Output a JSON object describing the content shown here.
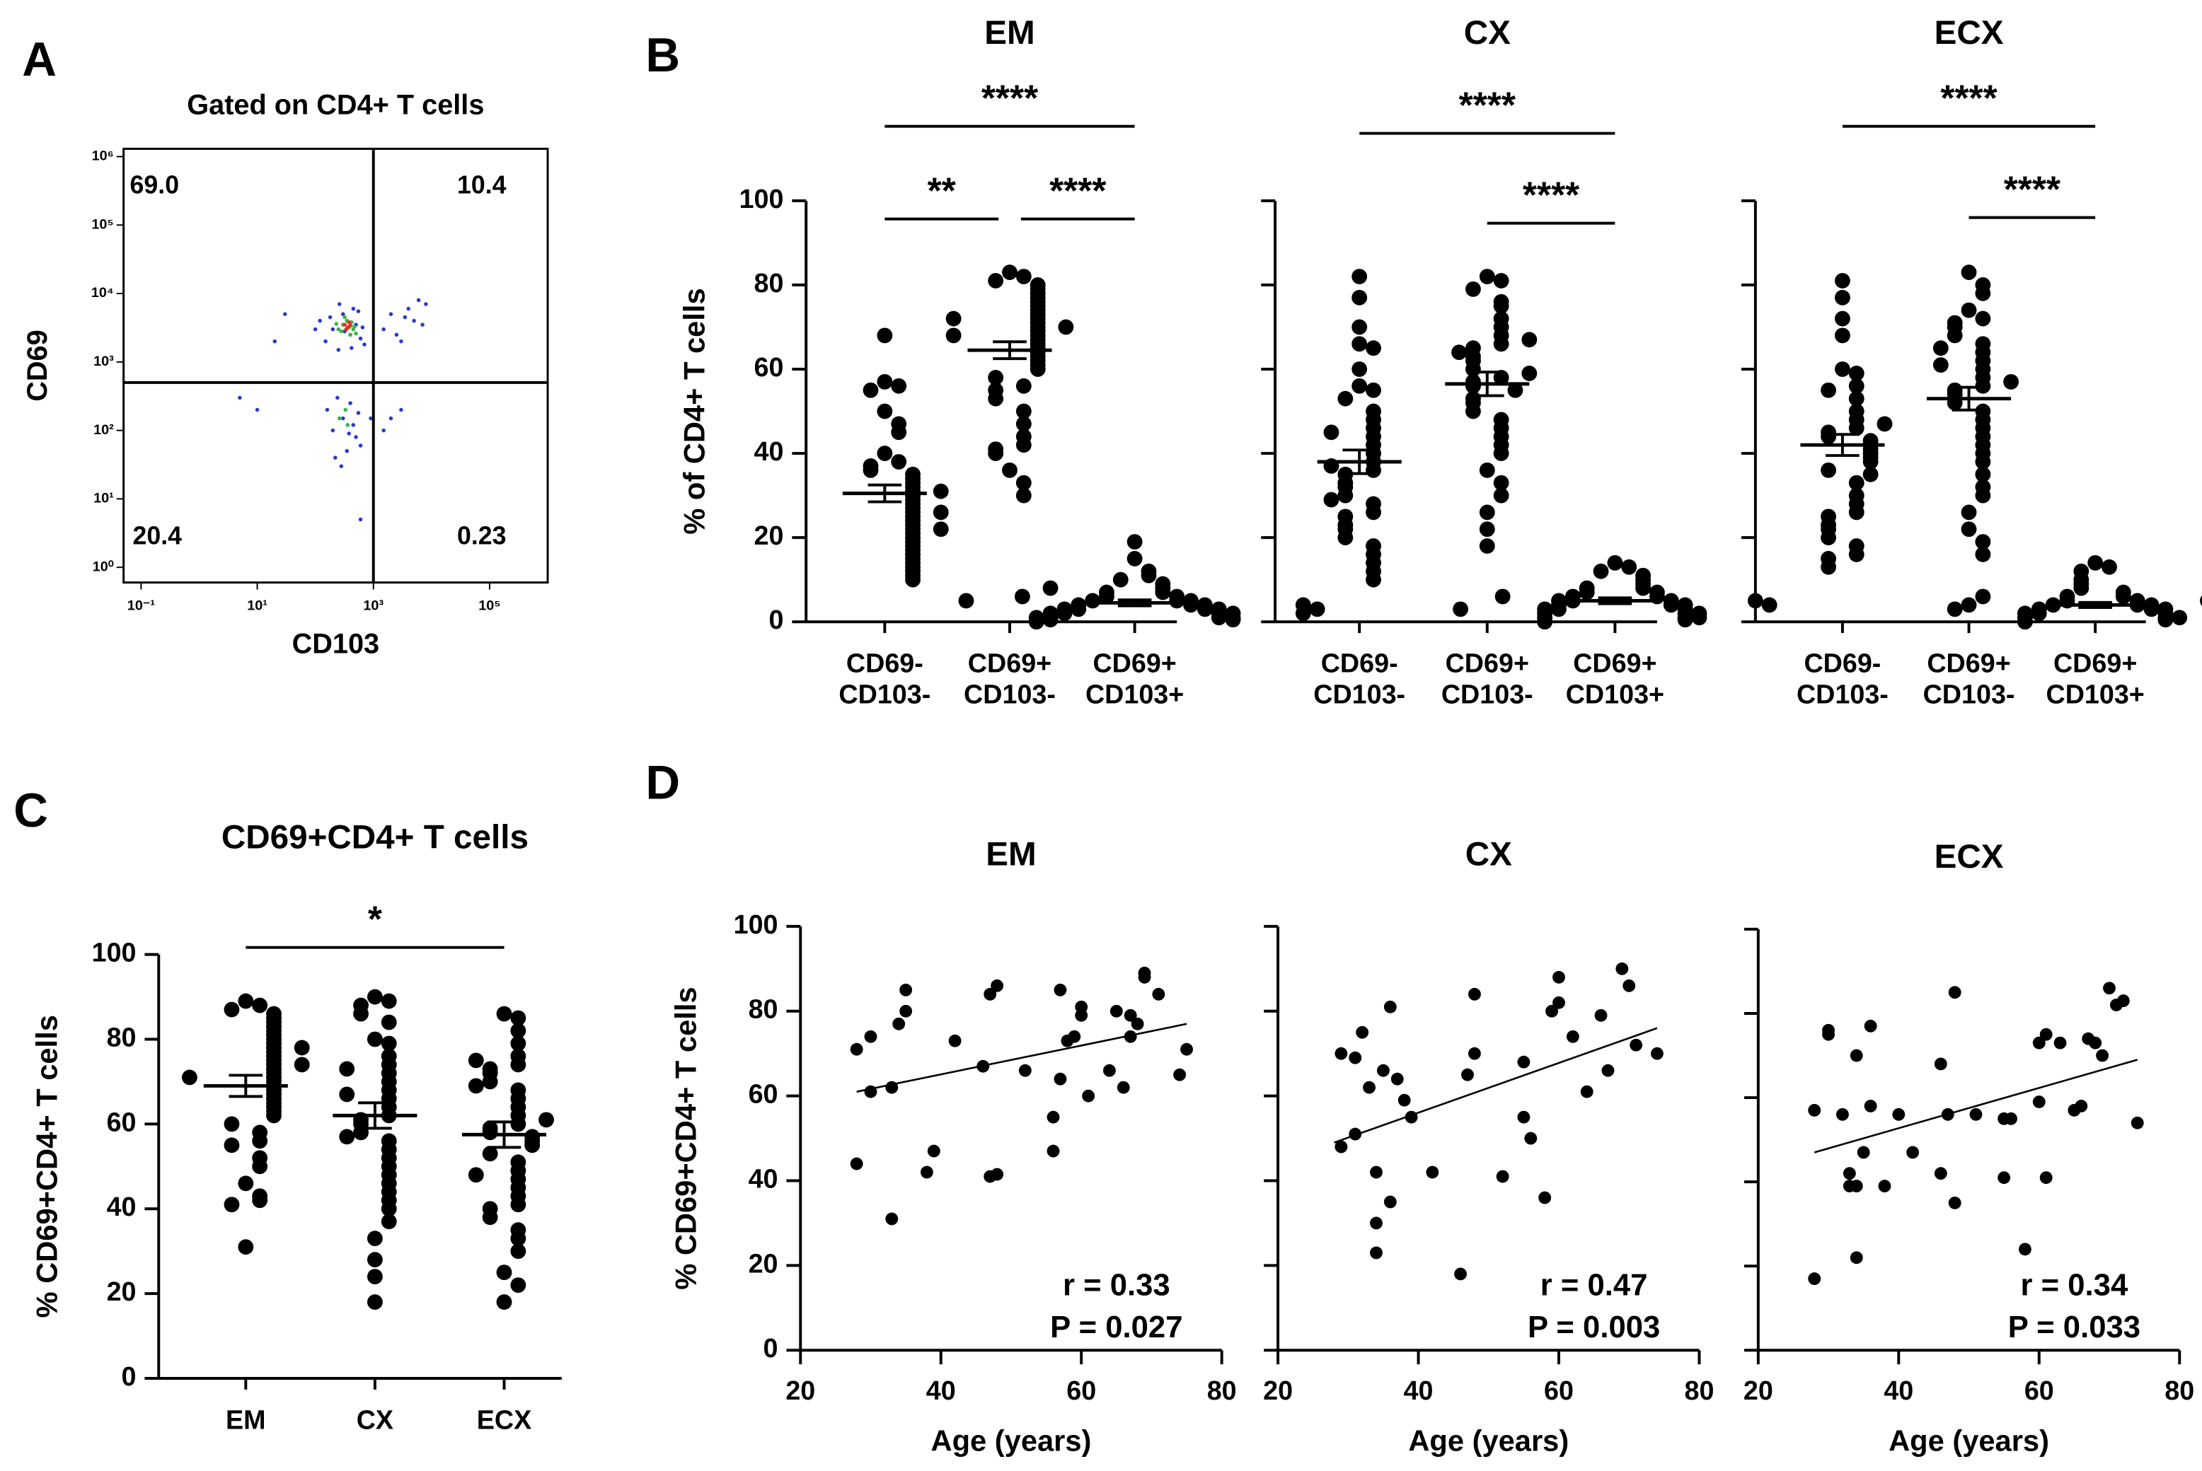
{
  "panel_labels": [
    "A",
    "B",
    "C",
    "D"
  ],
  "chart_data": [
    {
      "type": "flow",
      "title": "Gated on CD4+ T cells",
      "xlabel": "CD103",
      "ylabel": "CD69",
      "log": true,
      "xlim": [
        0.05,
        1000000
      ],
      "ylim": [
        0.6,
        1300000
      ],
      "xticks": [
        {
          "value": 0.1,
          "label": "10⁻¹"
        },
        {
          "value": 10,
          "label": "10¹"
        },
        {
          "value": 1000,
          "label": "10³"
        },
        {
          "value": 100000,
          "label": "10⁵"
        }
      ],
      "yticks": [
        {
          "value": 1,
          "label": "10⁰"
        },
        {
          "value": 10,
          "label": "10¹"
        },
        {
          "value": 100,
          "label": "10²"
        },
        {
          "value": 1000,
          "label": "10³"
        },
        {
          "value": 10000,
          "label": "10⁴"
        },
        {
          "value": 100000,
          "label": "10⁵"
        },
        {
          "value": 1000000,
          "label": "10⁶"
        }
      ],
      "gate": [
        1000,
        500
      ],
      "quadrants": [
        "69.0",
        "10.4",
        "20.4",
        "0.23"
      ],
      "series": [
        {
          "color": "#2a3cc8",
          "x": [
            150,
            200,
            250,
            300,
            350,
            400,
            450,
            500,
            600,
            700,
            180,
            260,
            320,
            420,
            550,
            650,
            1500,
            2000,
            3000,
            4000,
            5000,
            6000,
            7000,
            8000,
            2500,
            3500,
            160,
            200,
            240,
            300,
            350,
            400,
            450,
            500,
            550,
            600,
            220,
            280,
            380,
            5,
            30,
            1500,
            3000,
            20,
            10,
            600,
            900,
            100,
            2000,
            120
          ],
          "y": [
            2000,
            3000,
            1500,
            5000,
            4000,
            2500,
            6000,
            3500,
            2200,
            1800,
            4500,
            7000,
            2800,
            1600,
            5500,
            3200,
            3000,
            5000,
            2000,
            6000,
            4000,
            8000,
            3500,
            7000,
            2500,
            4500,
            200,
            100,
            300,
            150,
            50,
            250,
            120,
            80,
            180,
            60,
            40,
            30,
            90,
            300,
            5000,
            100,
            200,
            2000,
            200,
            5,
            150,
            3000,
            150,
            4000
          ]
        },
        {
          "color": "#3cb44b",
          "x": [
            250,
            300,
            350,
            400,
            450,
            280,
            320,
            380,
            420,
            500,
            230,
            470,
            260,
            330,
            360
          ],
          "y": [
            3000,
            3500,
            4000,
            2500,
            3000,
            2800,
            4500,
            3200,
            3800,
            2600,
            3600,
            3300,
            150,
            200,
            120
          ]
        },
        {
          "color": "#e03020",
          "x": [
            320,
            360,
            380,
            340,
            400
          ],
          "y": [
            3500,
            3200,
            3800,
            3000,
            3400
          ]
        }
      ]
    },
    {
      "type": "dotplot",
      "title": "EM",
      "ylabel": "% of CD4+ T cells",
      "ylim": [
        0,
        100
      ],
      "yticks": [
        0,
        20,
        40,
        60,
        80,
        100
      ],
      "show_tick_labels": true,
      "color": "#000000",
      "categories": [
        [
          "CD69-",
          "CD103-"
        ],
        [
          "CD69+",
          "CD103-"
        ],
        [
          "CD69+",
          "CD103+"
        ]
      ],
      "values": [
        [
          68,
          57,
          56,
          55,
          50,
          47,
          45,
          40,
          38,
          37,
          36,
          35,
          34,
          33,
          32,
          31,
          30,
          29,
          28,
          27,
          26,
          25,
          24,
          23,
          22,
          21,
          20,
          19,
          18,
          17,
          16,
          15,
          14,
          13,
          12,
          11,
          10,
          22,
          26,
          31
        ],
        [
          83,
          82,
          81,
          80,
          79,
          78,
          77,
          76,
          75,
          74,
          73,
          72,
          71,
          70,
          69,
          68,
          67,
          66,
          65,
          64,
          63,
          62,
          61,
          60,
          58,
          56,
          55,
          53,
          50,
          47,
          44,
          42,
          41,
          40,
          36,
          33,
          30,
          70,
          72,
          68
        ],
        [
          19,
          15,
          12,
          11,
          10,
          9,
          8,
          7,
          7,
          6,
          6,
          5,
          5,
          5,
          4,
          4,
          4,
          3,
          3,
          3,
          3,
          2,
          2,
          2,
          2,
          1,
          1,
          1,
          1,
          0.5,
          0.5,
          0,
          6,
          4,
          3,
          2,
          8,
          5
        ]
      ],
      "means": [
        30.5,
        64.5,
        4.5
      ],
      "sems": [
        2,
        2,
        0.7
      ],
      "brackets": [
        {
          "from": 0,
          "to": 2,
          "label": "****"
        },
        {
          "from": 0,
          "to": 1,
          "label": "**"
        },
        {
          "from": 1,
          "to": 2,
          "label": "****"
        }
      ]
    },
    {
      "type": "dotplot",
      "title": "CX",
      "ylim": [
        0,
        100
      ],
      "yticks": [
        0,
        20,
        40,
        60,
        80,
        100
      ],
      "show_tick_labels": false,
      "color": "#000000",
      "categories": [
        [
          "CD69-",
          "CD103-"
        ],
        [
          "CD69+",
          "CD103-"
        ],
        [
          "CD69+",
          "CD103+"
        ]
      ],
      "values": [
        [
          82,
          77,
          70,
          66,
          65,
          60,
          56,
          55,
          53,
          50,
          48,
          46,
          44,
          42,
          40,
          38,
          36,
          35,
          33,
          32,
          30,
          28,
          26,
          25,
          23,
          22,
          20,
          18,
          16,
          14,
          12,
          10,
          45,
          37,
          29
        ],
        [
          82,
          81,
          79,
          76,
          75,
          72,
          70,
          68,
          66,
          65,
          63,
          62,
          60,
          58,
          57,
          56,
          55,
          53,
          52,
          50,
          48,
          46,
          44,
          42,
          40,
          36,
          33,
          30,
          26,
          22,
          18,
          64,
          59,
          67
        ],
        [
          14,
          13,
          12,
          11,
          10,
          9,
          8,
          8,
          7,
          7,
          6,
          6,
          5,
          5,
          5,
          4,
          4,
          4,
          3,
          3,
          3,
          2,
          2,
          2,
          1,
          1,
          1,
          0.5,
          0,
          6,
          5,
          4,
          3
        ]
      ],
      "means": [
        38,
        56.5,
        5
      ],
      "sems": [
        2.8,
        2.8,
        0.7
      ],
      "brackets": [
        {
          "from": 0,
          "to": 2,
          "label": "****"
        },
        {
          "from": 1,
          "to": 2,
          "label": "****"
        }
      ]
    },
    {
      "type": "dotplot",
      "title": "ECX",
      "ylim": [
        0,
        100
      ],
      "yticks": [
        0,
        20,
        40,
        60,
        80,
        100
      ],
      "show_tick_labels": false,
      "color": "#000000",
      "categories": [
        [
          "CD69-",
          "CD103-"
        ],
        [
          "CD69+",
          "CD103-"
        ],
        [
          "CD69+",
          "CD103+"
        ]
      ],
      "values": [
        [
          81,
          77,
          72,
          68,
          60,
          59,
          56,
          53,
          50,
          48,
          46,
          45,
          44,
          43,
          42,
          41,
          40,
          39,
          38,
          36,
          33,
          30,
          28,
          26,
          25,
          23,
          22,
          20,
          18,
          16,
          15,
          13,
          35,
          47,
          55
        ],
        [
          83,
          80,
          78,
          74,
          72,
          71,
          70,
          68,
          66,
          64,
          62,
          60,
          58,
          56,
          55,
          54,
          52,
          50,
          48,
          46,
          44,
          42,
          40,
          38,
          35,
          32,
          30,
          26,
          22,
          19,
          16,
          57,
          61,
          65
        ],
        [
          14,
          13,
          12,
          10,
          9,
          8,
          7,
          6,
          6,
          5,
          5,
          4,
          4,
          4,
          3,
          3,
          3,
          2,
          2,
          2,
          1,
          1,
          1,
          0.5,
          0,
          5,
          4,
          3,
          2,
          6
        ]
      ],
      "means": [
        42,
        53,
        4
      ],
      "sems": [
        2.5,
        2.7,
        0.6
      ],
      "brackets": [
        {
          "from": 0,
          "to": 2,
          "label": "****"
        },
        {
          "from": 1,
          "to": 2,
          "label": "****"
        }
      ]
    },
    {
      "type": "dotplot",
      "title": "CD69+CD4+ T cells",
      "ylabel": "% CD69+CD4+ T cells",
      "ylim": [
        0,
        100
      ],
      "yticks": [
        0,
        20,
        40,
        60,
        80,
        100
      ],
      "show_tick_labels": true,
      "color": "#000000",
      "categories": [
        "EM",
        "CX",
        "ECX"
      ],
      "values": [
        [
          89,
          88,
          87,
          86,
          85,
          84,
          83,
          82,
          81,
          80,
          79,
          78,
          77,
          76,
          75,
          74,
          73,
          72,
          71,
          70,
          69,
          68,
          67,
          66,
          65,
          64,
          63,
          62,
          60,
          58,
          56,
          55,
          52,
          50,
          46,
          43,
          42,
          41,
          31,
          74,
          71,
          78
        ],
        [
          90,
          89,
          88,
          86,
          84,
          80,
          79,
          76,
          74,
          72,
          70,
          68,
          66,
          64,
          62,
          61,
          60,
          58,
          56,
          54,
          52,
          50,
          48,
          46,
          44,
          42,
          40,
          37,
          33,
          28,
          24,
          18,
          73,
          67,
          57
        ],
        [
          86,
          85,
          82,
          79,
          76,
          74,
          73,
          72,
          70,
          68,
          66,
          64,
          62,
          60,
          59,
          58,
          57,
          56,
          55,
          53,
          51,
          49,
          47,
          45,
          43,
          41,
          40,
          38,
          35,
          33,
          30,
          25,
          22,
          18,
          75,
          69,
          61,
          48
        ]
      ],
      "means": [
        69,
        62,
        57.5
      ],
      "sems": [
        2.5,
        3,
        3
      ],
      "brackets": [
        {
          "from": 0,
          "to": 2,
          "label": "*"
        }
      ]
    },
    {
      "type": "scatter",
      "title": "EM",
      "xlabel": "Age (years)",
      "ylabel": "% CD69+CD4+ T cells",
      "xlim": [
        20,
        80
      ],
      "xticks": [
        20,
        40,
        60,
        80
      ],
      "ylim": [
        0,
        100
      ],
      "yticks": [
        0,
        20,
        40,
        60,
        80,
        100
      ],
      "show_tick_labels": true,
      "color": "#000000",
      "x": [
        28,
        28,
        30,
        30,
        33,
        33,
        34,
        35,
        35,
        38,
        39,
        42,
        46,
        47,
        47,
        48,
        48,
        52,
        56,
        56,
        57,
        57,
        58,
        59,
        60,
        60,
        61,
        64,
        65,
        66,
        67,
        67,
        68,
        69,
        69,
        71,
        74,
        75
      ],
      "values": [
        44,
        71,
        61,
        74,
        31,
        62,
        77,
        80,
        85,
        42,
        47,
        73,
        67,
        41,
        84,
        86,
        41.5,
        66,
        47,
        55,
        64,
        85,
        73,
        74,
        79,
        81,
        60,
        66,
        80,
        62,
        79,
        74,
        77,
        88,
        89,
        84,
        65,
        71
      ],
      "fit": {
        "x": [
          28,
          75
        ],
        "y": [
          61,
          77
        ]
      },
      "annotations": [
        "r = 0.33",
        "P = 0.027"
      ]
    },
    {
      "type": "scatter",
      "title": "CX",
      "xlabel": "Age (years)",
      "xlim": [
        20,
        80
      ],
      "xticks": [
        20,
        40,
        60,
        80
      ],
      "ylim": [
        0,
        100
      ],
      "yticks": [
        0,
        20,
        40,
        60,
        80,
        100
      ],
      "show_tick_labels": false,
      "color": "#000000",
      "x": [
        29,
        29,
        31,
        31,
        32,
        33,
        34,
        34,
        34,
        35,
        36,
        36,
        37,
        38,
        39,
        42,
        46,
        47,
        48,
        48,
        52,
        55,
        55,
        56,
        58,
        59,
        60,
        60,
        62,
        64,
        66,
        67,
        69,
        70,
        71,
        74
      ],
      "values": [
        48,
        70,
        51,
        69,
        75,
        62,
        23,
        30,
        42,
        66,
        35,
        81,
        64,
        59,
        55,
        42,
        18,
        65,
        70,
        84,
        41,
        68,
        55,
        50,
        36,
        80,
        82,
        88,
        74,
        61,
        79,
        66,
        90,
        86,
        72,
        70
      ],
      "fit": {
        "x": [
          28,
          74
        ],
        "y": [
          49,
          76
        ]
      },
      "annotations": [
        "r = 0.47",
        "P = 0.003"
      ]
    },
    {
      "type": "scatter",
      "title": "ECX",
      "xlabel": "Age (years)",
      "xlim": [
        20,
        80
      ],
      "xticks": [
        20,
        40,
        60,
        80
      ],
      "ylim": [
        0,
        100
      ],
      "yticks": [
        0,
        20,
        40,
        60,
        80,
        100
      ],
      "show_tick_labels": false,
      "color": "#000000",
      "x": [
        28,
        28,
        30,
        30,
        32,
        33,
        33,
        34,
        34,
        34,
        35,
        36,
        36,
        38,
        40,
        42,
        46,
        46,
        47,
        48,
        48,
        51,
        55,
        55,
        56,
        58,
        60,
        60,
        61,
        61,
        63,
        65,
        66,
        67,
        68,
        69,
        70,
        71,
        72,
        74
      ],
      "values": [
        17,
        57,
        75,
        76,
        56,
        39,
        42,
        22,
        39,
        70,
        47,
        58,
        77,
        39,
        56,
        47,
        42,
        68,
        56,
        35,
        85,
        56,
        41,
        55,
        55,
        24,
        59,
        73,
        75,
        41,
        73,
        57,
        58,
        74,
        73,
        70,
        86,
        82,
        83,
        54
      ],
      "fit": {
        "x": [
          28,
          74
        ],
        "y": [
          47,
          69
        ]
      },
      "annotations": [
        "r = 0.34",
        "P = 0.033"
      ]
    }
  ]
}
